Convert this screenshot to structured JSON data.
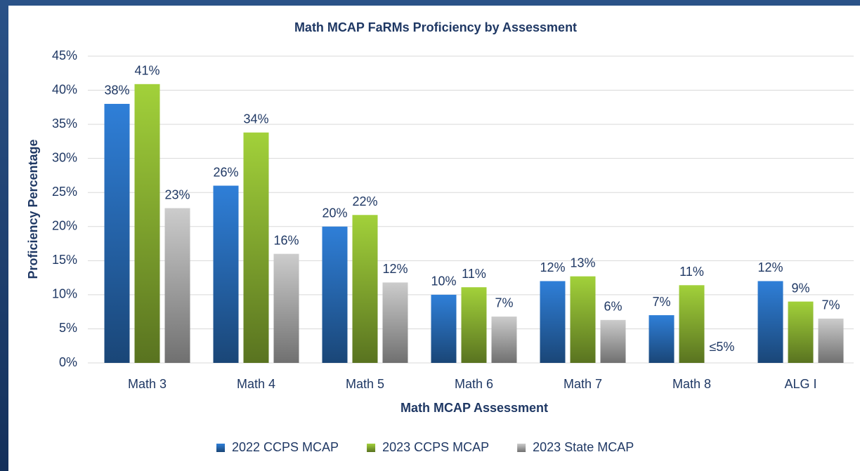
{
  "chart_data": {
    "type": "bar",
    "title": "Math MCAP FaRMs Proficiency by Assessment",
    "x_label": "Math MCAP Assessment",
    "y_label": "Proficiency Percentage",
    "categories": [
      "Math 3",
      "Math 4",
      "Math 5",
      "Math 6",
      "Math 7",
      "Math 8",
      "ALG I"
    ],
    "series": [
      {
        "name": "2022 CCPS MCAP",
        "color": "#2f7fd8",
        "values": [
          38,
          26,
          20,
          10,
          12,
          7,
          12
        ],
        "value_labels": [
          "38%",
          "26%",
          "20%",
          "10%",
          "12%",
          "7%",
          "12%"
        ]
      },
      {
        "name": "2023 CCPS MCAP",
        "color": "#a2d13a",
        "values": [
          40.9,
          33.8,
          21.7,
          11.1,
          12.7,
          11.4,
          9
        ],
        "value_labels": [
          "41%",
          "34%",
          "22%",
          "11%",
          "13%",
          "11%",
          "9%"
        ]
      },
      {
        "name": "2023 State MCAP",
        "color": "#cccccc",
        "values": [
          22.7,
          16,
          11.8,
          6.8,
          6.3,
          null,
          6.5
        ],
        "value_labels": [
          "23%",
          "16%",
          "12%",
          "7%",
          "6%",
          "≤5%",
          "7%"
        ]
      }
    ],
    "ylim": [
      0,
      45
    ],
    "yticks": [
      {
        "value": 0,
        "label": "0%"
      },
      {
        "value": 5,
        "label": "5%"
      },
      {
        "value": 10,
        "label": "10%"
      },
      {
        "value": 15,
        "label": "15%"
      },
      {
        "value": 20,
        "label": "20%"
      },
      {
        "value": 25,
        "label": "25%"
      },
      {
        "value": 30,
        "label": "30%"
      },
      {
        "value": 35,
        "label": "35%"
      },
      {
        "value": 40,
        "label": "40%"
      },
      {
        "value": 45,
        "label": "45%"
      }
    ],
    "grid": true,
    "legend": "bottom"
  }
}
